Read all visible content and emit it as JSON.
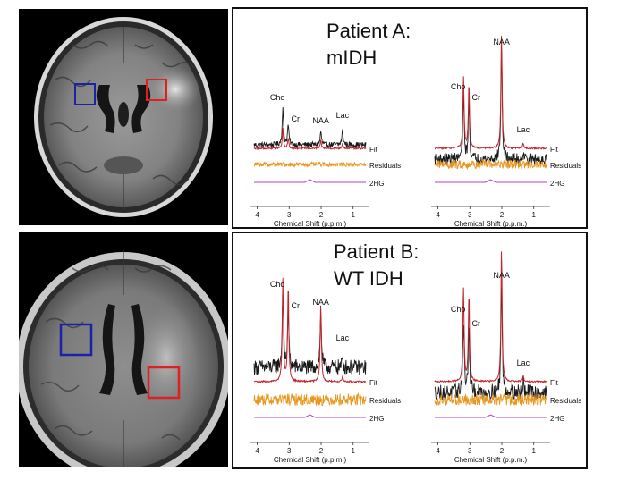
{
  "patients": [
    {
      "title_line1": "Patient A:",
      "title_line2": "mIDH",
      "spectra": [
        {
          "peak_labels": [
            {
              "text": "Cho",
              "ppm": 3.2
            },
            {
              "text": "Cr",
              "ppm": 3.03
            },
            {
              "text": "NAA",
              "ppm": 2.01
            },
            {
              "text": "Lac",
              "ppm": 1.33
            }
          ],
          "trace_labels": {
            "fit": "Fit",
            "residuals": "Residuals",
            "hg": "2HG"
          },
          "x_ticks": [
            "4",
            "3",
            "2",
            "1"
          ],
          "x_axis_label": "Chemical Shift (p.p.m.)"
        },
        {
          "peak_labels": [
            {
              "text": "NAA",
              "ppm": 2.01
            },
            {
              "text": "Cho",
              "ppm": 3.2
            },
            {
              "text": "Cr",
              "ppm": 3.03
            },
            {
              "text": "Lac",
              "ppm": 1.33
            }
          ],
          "trace_labels": {
            "fit": "Fit",
            "residuals": "Residuals",
            "hg": "2HG"
          },
          "x_ticks": [
            "4",
            "3",
            "2",
            "1"
          ],
          "x_axis_label": "Chemical Shift (p.p.m.)"
        }
      ]
    },
    {
      "title_line1": "Patient B:",
      "title_line2": "WT IDH",
      "spectra": [
        {
          "peak_labels": [
            {
              "text": "Cho",
              "ppm": 3.2
            },
            {
              "text": "Cr",
              "ppm": 3.03
            },
            {
              "text": "NAA",
              "ppm": 2.01
            },
            {
              "text": "Lac",
              "ppm": 1.33
            }
          ],
          "trace_labels": {
            "fit": "Fit",
            "residuals": "Residuals",
            "hg": "2HG"
          },
          "x_ticks": [
            "4",
            "3",
            "2",
            "1"
          ],
          "x_axis_label": "Chemical Shift (p.p.m.)"
        },
        {
          "peak_labels": [
            {
              "text": "NAA",
              "ppm": 2.01
            },
            {
              "text": "Cho",
              "ppm": 3.2
            },
            {
              "text": "Cr",
              "ppm": 3.03
            },
            {
              "text": "Lac",
              "ppm": 1.33
            }
          ],
          "trace_labels": {
            "fit": "Fit",
            "residuals": "Residuals",
            "hg": "2HG"
          },
          "x_ticks": [
            "4",
            "3",
            "2",
            "1"
          ],
          "x_axis_label": "Chemical Shift (p.p.m.)"
        }
      ]
    }
  ],
  "colors": {
    "data_trace": "#1a1a1a",
    "fit_trace": "#c0262b",
    "residual_trace": "#e8961e",
    "hg_trace": "#c23bc2",
    "roi_tumor": "#e02020",
    "roi_contralateral": "#1c22a8"
  }
}
